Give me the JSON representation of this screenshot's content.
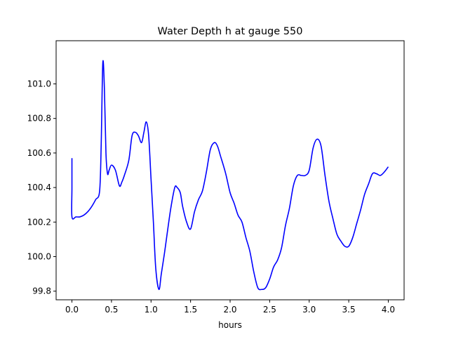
{
  "chart_data": {
    "type": "line",
    "title": "Water Depth h at gauge 550",
    "xlabel": "hours",
    "ylabel": "",
    "xlim": [
      -0.2,
      4.2
    ],
    "ylim": [
      99.75,
      101.25
    ],
    "xticks": [
      0.0,
      0.5,
      1.0,
      1.5,
      2.0,
      2.5,
      3.0,
      3.5,
      4.0
    ],
    "xtick_labels": [
      "0.0",
      "0.5",
      "1.0",
      "1.5",
      "2.0",
      "2.5",
      "3.0",
      "3.5",
      "4.0"
    ],
    "yticks": [
      99.8,
      100.0,
      100.2,
      100.4,
      100.6,
      100.8,
      101.0
    ],
    "ytick_labels": [
      "99.8",
      "100.0",
      "100.2",
      "100.4",
      "100.6",
      "100.8",
      "101.0"
    ],
    "grid": false,
    "series": [
      {
        "color": "#0000ff",
        "x": [
          0.0,
          0.0,
          0.0,
          0.05,
          0.1,
          0.15,
          0.2,
          0.25,
          0.3,
          0.35,
          0.37,
          0.39,
          0.41,
          0.43,
          0.45,
          0.47,
          0.5,
          0.55,
          0.6,
          0.63,
          0.67,
          0.72,
          0.76,
          0.8,
          0.84,
          0.88,
          0.91,
          0.94,
          0.97,
          1.0,
          1.03,
          1.06,
          1.1,
          1.13,
          1.17,
          1.2,
          1.25,
          1.3,
          1.33,
          1.37,
          1.4,
          1.45,
          1.5,
          1.55,
          1.6,
          1.65,
          1.7,
          1.75,
          1.8,
          1.84,
          1.88,
          1.92,
          1.95,
          2.0,
          2.05,
          2.1,
          2.15,
          2.2,
          2.25,
          2.3,
          2.35,
          2.4,
          2.45,
          2.5,
          2.55,
          2.6,
          2.65,
          2.7,
          2.75,
          2.8,
          2.85,
          2.9,
          2.95,
          3.0,
          3.05,
          3.1,
          3.15,
          3.2,
          3.25,
          3.3,
          3.35,
          3.4,
          3.45,
          3.5,
          3.55,
          3.6,
          3.65,
          3.7,
          3.75,
          3.8,
          3.85,
          3.9,
          3.95,
          4.0
        ],
        "y": [
          100.57,
          100.4,
          100.23,
          100.23,
          100.23,
          100.24,
          100.26,
          100.29,
          100.33,
          100.38,
          100.65,
          101.12,
          100.98,
          100.6,
          100.48,
          100.5,
          100.53,
          100.5,
          100.41,
          100.43,
          100.48,
          100.56,
          100.7,
          100.72,
          100.7,
          100.66,
          100.72,
          100.78,
          100.7,
          100.45,
          100.2,
          99.93,
          99.81,
          99.9,
          100.02,
          100.12,
          100.28,
          100.4,
          100.4,
          100.37,
          100.29,
          100.2,
          100.16,
          100.26,
          100.33,
          100.38,
          100.49,
          100.62,
          100.66,
          100.64,
          100.58,
          100.52,
          100.47,
          100.37,
          100.31,
          100.24,
          100.2,
          100.11,
          100.03,
          99.91,
          99.82,
          99.81,
          99.82,
          99.87,
          99.94,
          99.98,
          100.05,
          100.18,
          100.28,
          100.41,
          100.47,
          100.47,
          100.47,
          100.5,
          100.63,
          100.68,
          100.64,
          100.47,
          100.32,
          100.22,
          100.13,
          100.09,
          100.06,
          100.06,
          100.11,
          100.19,
          100.27,
          100.36,
          100.42,
          100.48,
          100.48,
          100.47,
          100.49,
          100.52
        ]
      }
    ]
  }
}
